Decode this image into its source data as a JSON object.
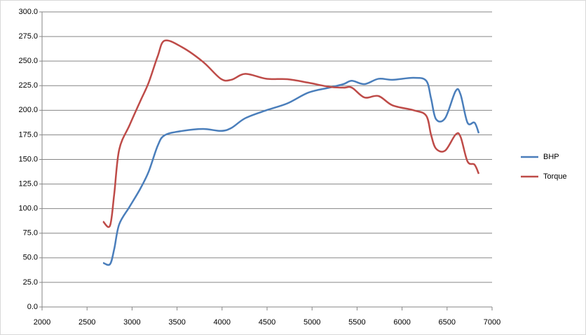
{
  "chart_data": {
    "type": "line",
    "x": [
      2678,
      2755,
      2802,
      2857,
      2973,
      3090,
      3184,
      3285,
      3363,
      3558,
      3791,
      3986,
      4103,
      4259,
      4492,
      4726,
      4960,
      5193,
      5349,
      5442,
      5582,
      5738,
      5894,
      6128,
      6268,
      6322,
      6377,
      6479,
      6595,
      6650,
      6727,
      6805,
      6852
    ],
    "series": [
      {
        "name": "BHP",
        "color": "#4a7ebb",
        "values": [
          44.9,
          43.5,
          59,
          84,
          102,
          120,
          137.5,
          164,
          174.6,
          179,
          181,
          179,
          182,
          192,
          200,
          207,
          218,
          223,
          226.6,
          230,
          226.6,
          232,
          231,
          233,
          230,
          212,
          191,
          192,
          219.5,
          216,
          187.4,
          187.4,
          176.7
        ]
      },
      {
        "name": "Torque",
        "color": "#be4b48",
        "values": [
          87,
          82.7,
          115,
          160,
          185,
          209,
          228,
          255,
          270.8,
          264,
          249,
          232,
          231,
          237,
          232,
          231.6,
          228,
          223.8,
          223,
          223,
          213,
          214.5,
          205,
          200,
          194.5,
          175,
          161,
          159,
          175.3,
          173,
          148,
          144.7,
          135.4
        ]
      }
    ],
    "xlim": [
      2000,
      7000
    ],
    "xticks": [
      2000,
      2500,
      3000,
      3500,
      4000,
      4500,
      5000,
      5500,
      6000,
      6500,
      7000
    ],
    "ylim": [
      0,
      300
    ],
    "yticks": [
      {
        "value": 0,
        "label": "0.0"
      },
      {
        "value": 25,
        "label": "25.0"
      },
      {
        "value": 50,
        "label": "50.0"
      },
      {
        "value": 75,
        "label": "75.0"
      },
      {
        "value": 100,
        "label": "100.0"
      },
      {
        "value": 125,
        "label": "125.0"
      },
      {
        "value": 150,
        "label": "150.0"
      },
      {
        "value": 175,
        "label": "175.0"
      },
      {
        "value": 200,
        "label": "200.0"
      },
      {
        "value": 225,
        "label": "225.0"
      },
      {
        "value": 250,
        "label": "250.0"
      },
      {
        "value": 275,
        "label": "275.0"
      },
      {
        "value": 300,
        "label": "300.0"
      }
    ],
    "grid": true,
    "legend": "right"
  }
}
